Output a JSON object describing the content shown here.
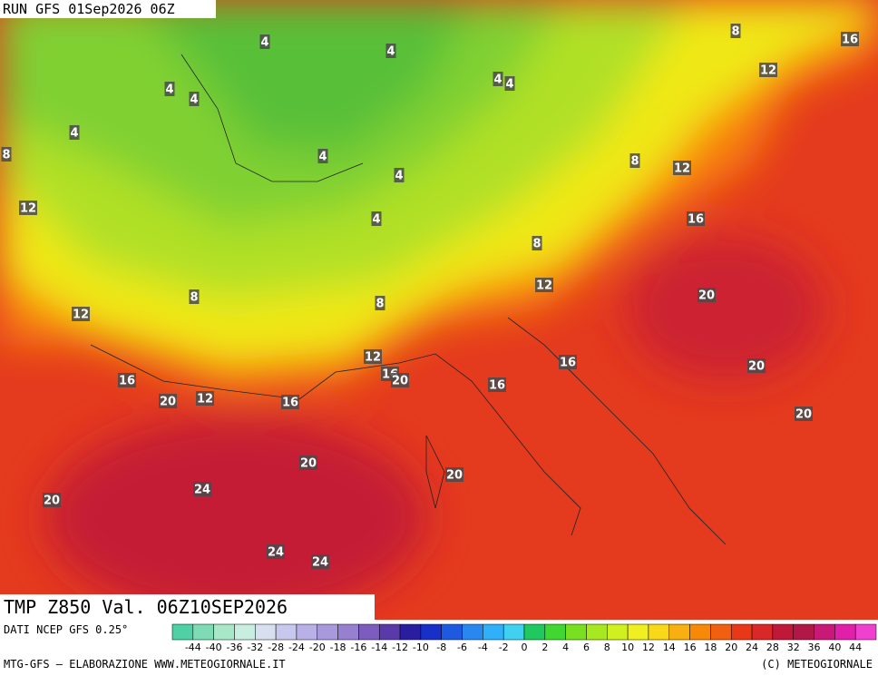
{
  "header": {
    "run": "RUN GFS 01Sep2026 06Z",
    "field": "TMP Z850 Val. 06Z10SEP2026"
  },
  "footer": {
    "source": "DATI NCEP GFS 0.25°",
    "credit": "MTG-GFS – ELABORAZIONE WWW.METEOGIORNALE.IT",
    "copyright": "(C) METEOGIORNALE"
  },
  "contour_labels": [
    4,
    4,
    4,
    4,
    4,
    4,
    4,
    8,
    4,
    4,
    4,
    8,
    16,
    12,
    8,
    12,
    12,
    16,
    8,
    8,
    8,
    12,
    12,
    20,
    12,
    16,
    20,
    16,
    20,
    16,
    20,
    12,
    16,
    16,
    20,
    20,
    20,
    24,
    20,
    24,
    24
  ],
  "scale": {
    "ticks": [
      -44,
      -40,
      -36,
      -32,
      -28,
      -24,
      -20,
      -18,
      -16,
      -14,
      -12,
      -10,
      -8,
      -6,
      -4,
      -2,
      0,
      2,
      4,
      6,
      8,
      10,
      12,
      14,
      16,
      18,
      20,
      24,
      28,
      32,
      36,
      40,
      44
    ],
    "colors": [
      "#4fd1a5",
      "#7ddcb5",
      "#a8e8c8",
      "#c8eee0",
      "#d8e0f0",
      "#c8c8ee",
      "#b8b0e6",
      "#a898dc",
      "#9880d0",
      "#7c5cbc",
      "#5a3aa8",
      "#2a1ea0",
      "#1830c8",
      "#1e5ae0",
      "#2888f0",
      "#30b0f8",
      "#40d0f0",
      "#20c860",
      "#40d830",
      "#78e020",
      "#a8e820",
      "#d0f020",
      "#f0f020",
      "#f8d818",
      "#f8b010",
      "#f88808",
      "#f06010",
      "#e83818",
      "#d82828",
      "#c01838",
      "#b01848",
      "#c81878",
      "#e020a8",
      "#f040d0"
    ]
  }
}
